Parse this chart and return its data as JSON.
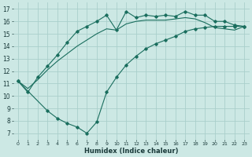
{
  "bg_color": "#cce8e4",
  "grid_color": "#aacfcb",
  "line_color": "#1a6e5e",
  "xlabel": "Humidex (Indice chaleur)",
  "xlim": [
    -0.5,
    23.5
  ],
  "ylim": [
    6.5,
    17.5
  ],
  "xticks": [
    0,
    1,
    2,
    3,
    4,
    5,
    6,
    7,
    8,
    9,
    10,
    11,
    12,
    13,
    14,
    15,
    16,
    17,
    18,
    19,
    20,
    21,
    22,
    23
  ],
  "yticks": [
    7,
    8,
    9,
    10,
    11,
    12,
    13,
    14,
    15,
    16,
    17
  ],
  "line_upper_x": [
    0,
    1,
    2,
    3,
    4,
    5,
    6,
    7,
    8,
    9,
    10,
    11,
    12,
    13,
    14,
    15,
    16,
    17,
    18,
    19,
    20,
    21,
    22,
    23
  ],
  "line_upper_y": [
    11.2,
    10.6,
    11.3,
    12.1,
    12.8,
    13.4,
    14.0,
    14.5,
    15.0,
    15.4,
    15.3,
    15.8,
    16.0,
    16.1,
    16.1,
    16.1,
    16.2,
    16.3,
    16.2,
    15.9,
    15.5,
    15.4,
    15.3,
    15.6
  ],
  "line_mid_x": [
    0,
    1,
    2,
    3,
    4,
    5,
    6,
    7,
    8,
    9,
    10,
    11,
    12,
    13,
    14,
    15,
    16,
    17,
    18,
    19,
    20,
    21,
    22,
    23
  ],
  "line_mid_y": [
    11.2,
    10.3,
    11.5,
    12.4,
    13.3,
    14.3,
    15.2,
    15.6,
    16.0,
    16.5,
    15.3,
    16.8,
    16.3,
    16.5,
    16.4,
    16.5,
    16.4,
    16.8,
    16.5,
    16.5,
    16.0,
    16.0,
    15.7,
    15.6
  ],
  "line_lower_x": [
    0,
    3,
    4,
    5,
    6,
    7,
    8,
    9,
    10,
    11,
    12,
    13,
    14,
    15,
    16,
    17,
    18,
    19,
    20,
    21,
    22,
    23
  ],
  "line_lower_y": [
    11.2,
    8.8,
    8.2,
    7.8,
    7.5,
    7.0,
    7.9,
    10.3,
    11.5,
    12.5,
    13.2,
    13.8,
    14.2,
    14.5,
    14.8,
    15.2,
    15.4,
    15.5,
    15.6,
    15.6,
    15.6,
    15.6
  ]
}
